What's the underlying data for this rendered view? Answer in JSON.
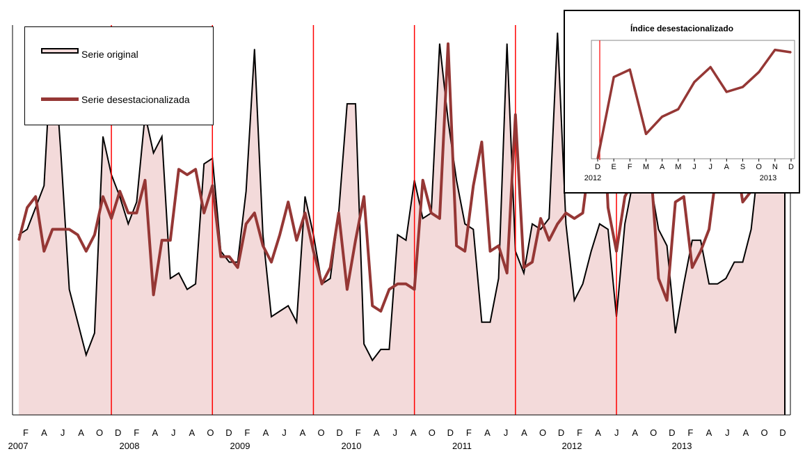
{
  "chart_data": [
    {
      "type": "area",
      "legend": {
        "placement": "top-left",
        "entries": [
          "Serie original",
          "Serie desestacionalizada"
        ]
      },
      "x_month_ticks": [
        "F",
        "A",
        "J",
        "A",
        "O",
        "D",
        "F",
        "A",
        "J",
        "A",
        "O",
        "D",
        "F",
        "A",
        "J",
        "A",
        "O",
        "D",
        "F",
        "A",
        "J",
        "A",
        "O",
        "D",
        "F",
        "A",
        "J",
        "A",
        "O",
        "D",
        "F",
        "A",
        "J",
        "A",
        "O",
        "D",
        "F",
        "A",
        "J",
        "A",
        "O",
        "D"
      ],
      "x_year_labels": [
        "2007",
        "2008",
        "2009",
        "2010",
        "2011",
        "2012",
        "2013"
      ],
      "year_dividers_at": [
        "Dic 2007",
        "Dic 2008",
        "Dic 2009",
        "Dic 2010",
        "Dic 2011",
        "Dic 2012"
      ],
      "grid": false,
      "series": [
        {
          "name": "Serie original",
          "style": "area",
          "fill": "#f3dada",
          "stroke": "#000000",
          "values": [
            33,
            34,
            38,
            42,
            70,
            48,
            23,
            17,
            11,
            15,
            51,
            44,
            40,
            35,
            39,
            55,
            48,
            51,
            25,
            26,
            23,
            24,
            46,
            47,
            30,
            28,
            28,
            41,
            67,
            33,
            18,
            19,
            20,
            17,
            40,
            33,
            24,
            25,
            37,
            57,
            57,
            13,
            10,
            12,
            12,
            33,
            32,
            43,
            36,
            37,
            68,
            54,
            43,
            35,
            34,
            17,
            17,
            25,
            68,
            30,
            26,
            35,
            34,
            36,
            70,
            35,
            21,
            24,
            30,
            35,
            34,
            18,
            35,
            43,
            44,
            43,
            34,
            31,
            15,
            24,
            32,
            32,
            24,
            24,
            25,
            28,
            28,
            34,
            48,
            42,
            52,
            70
          ]
        },
        {
          "name": "Serie desestacionalizada",
          "style": "line",
          "stroke": "#953735",
          "values": [
            32,
            38,
            40,
            30,
            34,
            34,
            34,
            33,
            30,
            33,
            40,
            36,
            41,
            37,
            37,
            43,
            22,
            32,
            32,
            45,
            44,
            45,
            37,
            42,
            29,
            29,
            27,
            35,
            37,
            31,
            28,
            33,
            39,
            32,
            37,
            30,
            24,
            27,
            37,
            23,
            32,
            40,
            20,
            19,
            23,
            24,
            24,
            23,
            43,
            37,
            36,
            68,
            31,
            30,
            42,
            50,
            30,
            31,
            26,
            55,
            27,
            28,
            36,
            32,
            35,
            37,
            36,
            37,
            49,
            70,
            38,
            30,
            40,
            43,
            42,
            47,
            25,
            21,
            39,
            40,
            27,
            30,
            34,
            46,
            54,
            49,
            39,
            41,
            50,
            55,
            62,
            70
          ]
        }
      ]
    },
    {
      "type": "line",
      "title": "Índice desestacionalizado",
      "x_ticks": [
        "D",
        "E",
        "F",
        "M",
        "A",
        "M",
        "J",
        "J",
        "A",
        "S",
        "O",
        "N",
        "D"
      ],
      "x_year_labels": [
        "2012",
        "2013"
      ],
      "series": [
        {
          "name": "",
          "stroke": "#953735",
          "values": [
            0,
            33,
            36,
            10,
            17,
            20,
            31,
            37,
            27,
            29,
            35,
            44,
            43
          ]
        }
      ]
    }
  ]
}
